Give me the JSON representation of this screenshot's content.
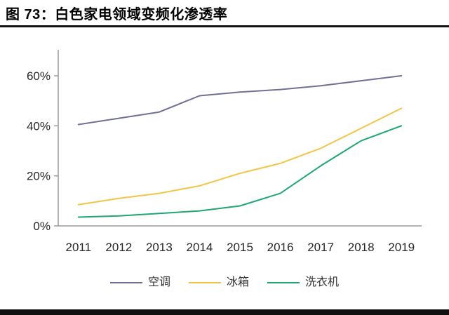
{
  "figure": {
    "title": "图 73：白色家电领域变频化渗透率"
  },
  "colors": {
    "title_text": "#000000",
    "title_rule": "#111111",
    "bottom_bar": "#111111",
    "axis_line": "#9a9a9a",
    "tick_label": "#262626",
    "background": "#ffffff"
  },
  "chart_data": {
    "type": "line",
    "title": "白色家电领域变频化渗透率",
    "categories": [
      "2011",
      "2012",
      "2013",
      "2014",
      "2015",
      "2016",
      "2017",
      "2018",
      "2019"
    ],
    "series": [
      {
        "name": "空调",
        "color": "#6F7094",
        "values": [
          40.5,
          43,
          45.5,
          52,
          53.5,
          54.5,
          56,
          58,
          60
        ]
      },
      {
        "name": "冰箱",
        "color": "#F2C645",
        "values": [
          8.5,
          11,
          13,
          16,
          21,
          25,
          31,
          39,
          47
        ]
      },
      {
        "name": "洗衣机",
        "color": "#1EA871",
        "values": [
          3.5,
          4,
          5,
          6,
          8,
          13,
          24,
          34,
          40
        ]
      }
    ],
    "xlabel": "",
    "ylabel": "",
    "ylim": [
      0,
      60
    ],
    "yticks": [
      0,
      20,
      40,
      60
    ],
    "ytick_labels": [
      "0%",
      "20%",
      "40%",
      "60%"
    ],
    "grid": false,
    "legend_position": "bottom"
  }
}
